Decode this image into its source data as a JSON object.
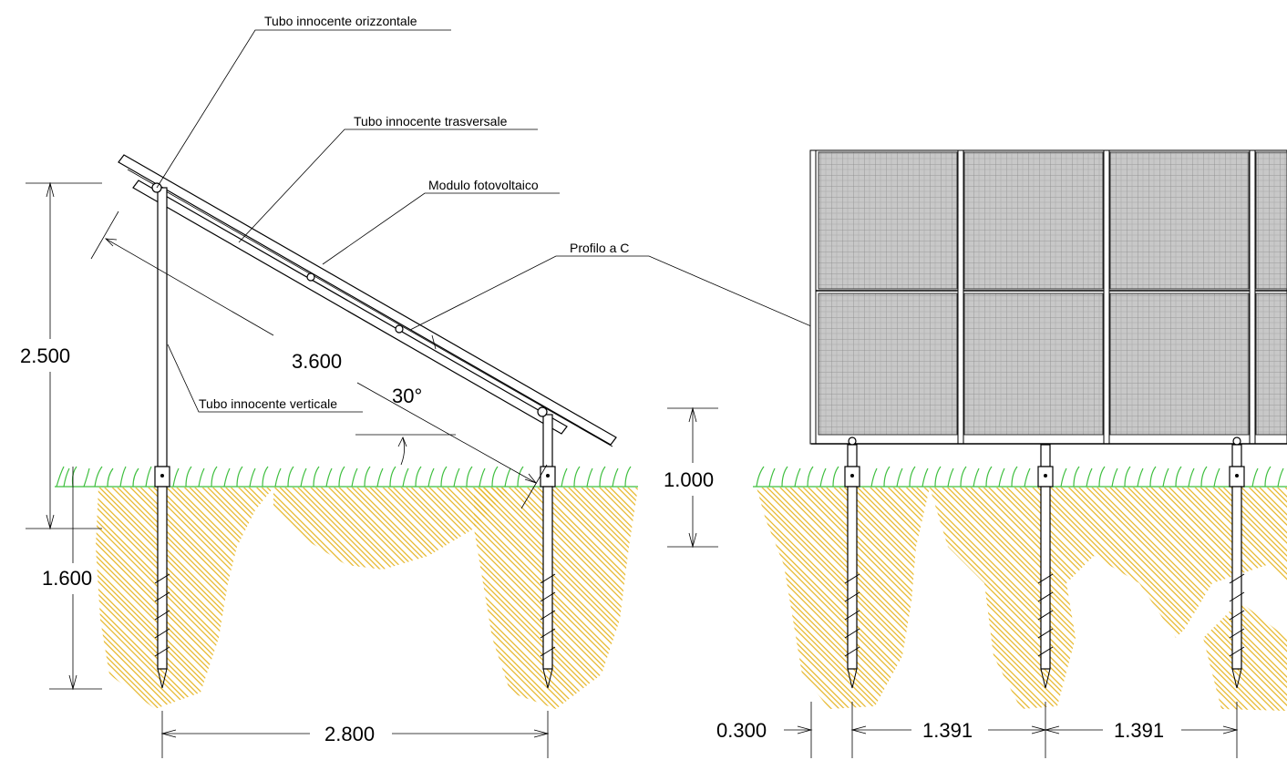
{
  "labels": {
    "horizontal_tube": "Tubo innocente orizzontale",
    "transverse_tube": "Tubo innocente trasversale",
    "pv_module": "Modulo fotovoltaico",
    "c_profile": "Profilo a C",
    "vertical_tube": "Tubo innocente verticale"
  },
  "dimensions": {
    "height_total": "2.500",
    "panel_length": "3.600",
    "tilt_angle": "30°",
    "front_height": "1.000",
    "screw_depth": "1.600",
    "post_spacing": "2.800",
    "edge_offset": "0.300",
    "span_1": "1.391",
    "span_2": "1.391"
  },
  "colors": {
    "grass": "#3fbf3f",
    "soil_hatch": "#e6b422",
    "panel": "#bdbdbd",
    "line": "#000000"
  }
}
